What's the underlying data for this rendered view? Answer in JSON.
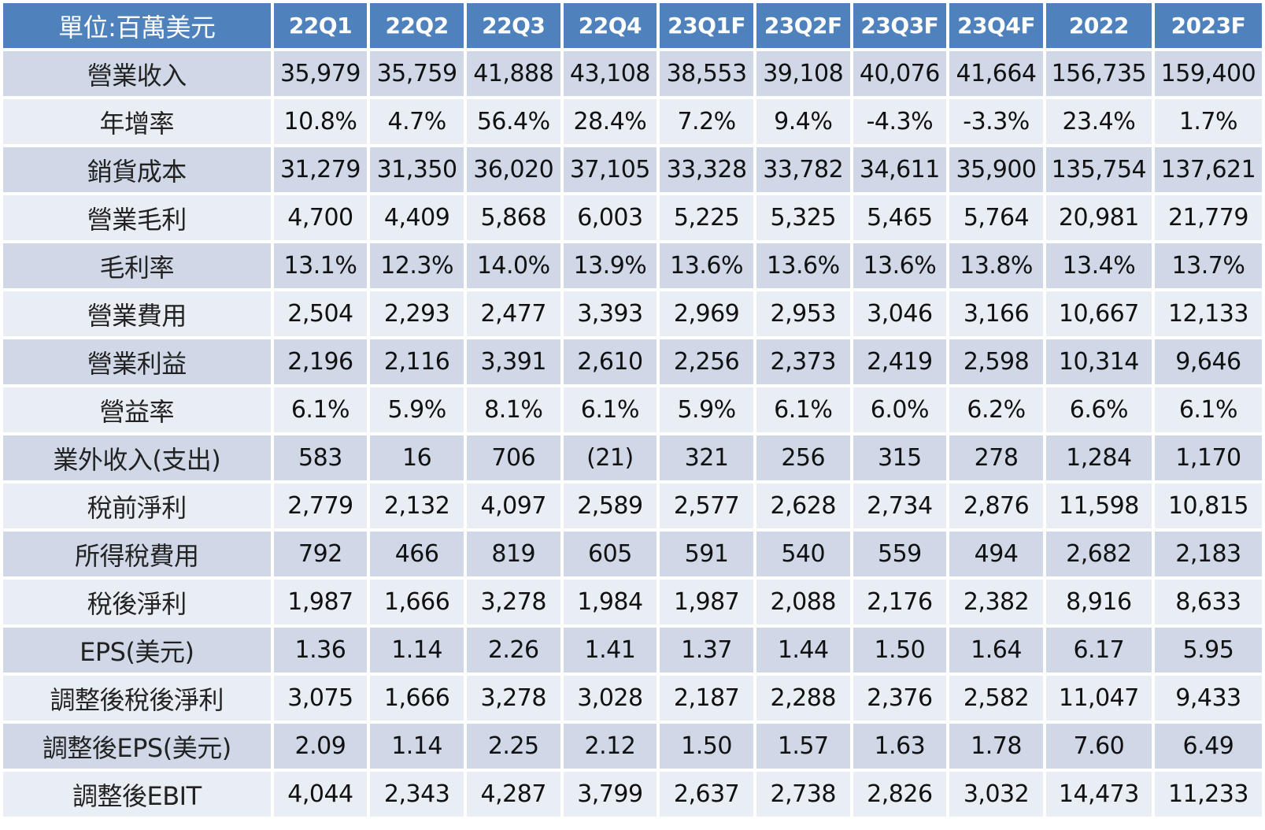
{
  "table": {
    "corner_label": "單位:百萬美元",
    "columns": [
      "22Q1",
      "22Q2",
      "22Q3",
      "22Q4",
      "23Q1F",
      "23Q2F",
      "23Q3F",
      "23Q4F",
      "2022",
      "2023F"
    ],
    "rows": [
      {
        "label": "營業收入",
        "values": [
          "35,979",
          "35,759",
          "41,888",
          "43,108",
          "38,553",
          "39,108",
          "40,076",
          "41,664",
          "156,735",
          "159,400"
        ]
      },
      {
        "label": "年增率",
        "values": [
          "10.8%",
          "4.7%",
          "56.4%",
          "28.4%",
          "7.2%",
          "9.4%",
          "-4.3%",
          "-3.3%",
          "23.4%",
          "1.7%"
        ]
      },
      {
        "label": "銷貨成本",
        "values": [
          "31,279",
          "31,350",
          "36,020",
          "37,105",
          "33,328",
          "33,782",
          "34,611",
          "35,900",
          "135,754",
          "137,621"
        ]
      },
      {
        "label": "營業毛利",
        "values": [
          "4,700",
          "4,409",
          "5,868",
          "6,003",
          "5,225",
          "5,325",
          "5,465",
          "5,764",
          "20,981",
          "21,779"
        ]
      },
      {
        "label": "毛利率",
        "values": [
          "13.1%",
          "12.3%",
          "14.0%",
          "13.9%",
          "13.6%",
          "13.6%",
          "13.6%",
          "13.8%",
          "13.4%",
          "13.7%"
        ]
      },
      {
        "label": "營業費用",
        "values": [
          "2,504",
          "2,293",
          "2,477",
          "3,393",
          "2,969",
          "2,953",
          "3,046",
          "3,166",
          "10,667",
          "12,133"
        ]
      },
      {
        "label": "營業利益",
        "values": [
          "2,196",
          "2,116",
          "3,391",
          "2,610",
          "2,256",
          "2,373",
          "2,419",
          "2,598",
          "10,314",
          "9,646"
        ]
      },
      {
        "label": "營益率",
        "values": [
          "6.1%",
          "5.9%",
          "8.1%",
          "6.1%",
          "5.9%",
          "6.1%",
          "6.0%",
          "6.2%",
          "6.6%",
          "6.1%"
        ]
      },
      {
        "label": "業外收入(支出)",
        "values": [
          "583",
          "16",
          "706",
          "(21)",
          "321",
          "256",
          "315",
          "278",
          "1,284",
          "1,170"
        ]
      },
      {
        "label": "稅前淨利",
        "values": [
          "2,779",
          "2,132",
          "4,097",
          "2,589",
          "2,577",
          "2,628",
          "2,734",
          "2,876",
          "11,598",
          "10,815"
        ]
      },
      {
        "label": "所得稅費用",
        "values": [
          "792",
          "466",
          "819",
          "605",
          "591",
          "540",
          "559",
          "494",
          "2,682",
          "2,183"
        ]
      },
      {
        "label": "稅後淨利",
        "values": [
          "1,987",
          "1,666",
          "3,278",
          "1,984",
          "1,987",
          "2,088",
          "2,176",
          "2,382",
          "8,916",
          "8,633"
        ]
      },
      {
        "label": "EPS(美元)",
        "values": [
          "1.36",
          "1.14",
          "2.26",
          "1.41",
          "1.37",
          "1.44",
          "1.50",
          "1.64",
          "6.17",
          "5.95"
        ]
      },
      {
        "label": "調整後稅後淨利",
        "values": [
          "3,075",
          "1,666",
          "3,278",
          "3,028",
          "2,187",
          "2,288",
          "2,376",
          "2,582",
          "11,047",
          "9,433"
        ]
      },
      {
        "label": "調整後EPS(美元)",
        "values": [
          "2.09",
          "1.14",
          "2.25",
          "2.12",
          "1.50",
          "1.57",
          "1.63",
          "1.78",
          "7.60",
          "6.49"
        ]
      },
      {
        "label": "調整後EBIT",
        "values": [
          "4,044",
          "2,343",
          "4,287",
          "3,799",
          "2,637",
          "2,738",
          "2,826",
          "3,032",
          "14,473",
          "11,233"
        ]
      }
    ]
  },
  "colors": {
    "header_bg": "#4f81bd",
    "header_text": "#ffffff",
    "row_dark": "#d0d8e8",
    "row_light": "#e9edf4"
  }
}
